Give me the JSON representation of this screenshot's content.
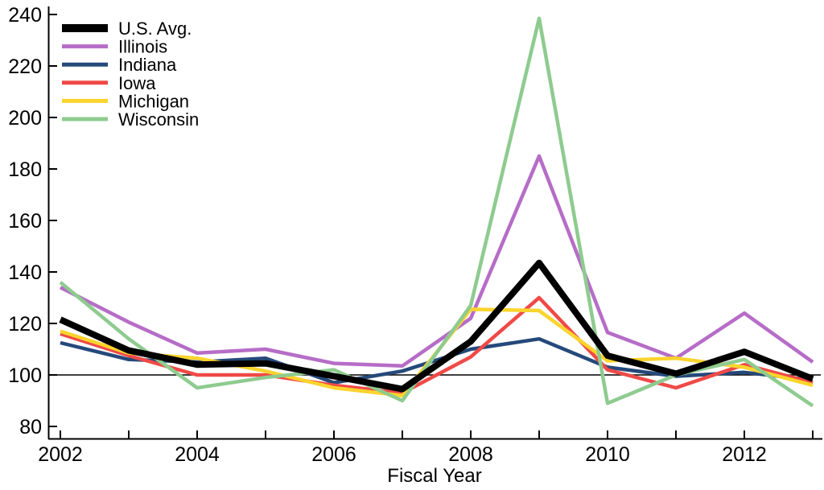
{
  "chart_data": {
    "type": "line",
    "title": "",
    "xlabel": "Fiscal Year",
    "ylabel": "",
    "x": [
      2002,
      2003,
      2004,
      2005,
      2006,
      2007,
      2008,
      2009,
      2010,
      2011,
      2012,
      2013
    ],
    "x_label_years": [
      2002,
      2004,
      2006,
      2008,
      2010,
      2012
    ],
    "y_ticks": [
      80,
      100,
      120,
      140,
      160,
      180,
      200,
      220,
      240
    ],
    "ylim": [
      80,
      240
    ],
    "xlim": [
      2002,
      2013
    ],
    "grid": "off",
    "reference_line_y": 100,
    "legend_position": "top-left",
    "axis_color": "#000000",
    "background_color": "#ffffff",
    "series": [
      {
        "name": "U.S. Avg.",
        "color": "#000000",
        "width": 8,
        "values": [
          121.5,
          109.5,
          104,
          104.5,
          99.5,
          94.5,
          113,
          143.5,
          107.5,
          100.5,
          109,
          98.5
        ]
      },
      {
        "name": "Illinois",
        "color": "#b66dc7",
        "width": 4.5,
        "values": [
          134,
          120.5,
          108.5,
          110,
          104.5,
          103.5,
          122,
          185,
          116.5,
          106.5,
          124,
          105
        ]
      },
      {
        "name": "Indiana",
        "color": "#25497a",
        "width": 4.5,
        "values": [
          112.5,
          106,
          105,
          106.5,
          97,
          101.5,
          110,
          114,
          103,
          99.5,
          101,
          98
        ]
      },
      {
        "name": "Iowa",
        "color": "#ef4a47",
        "width": 4.5,
        "values": [
          116,
          107.5,
          100,
          100,
          96,
          93,
          107,
          130,
          102,
          95,
          104,
          97
        ]
      },
      {
        "name": "Michigan",
        "color": "#fbd42d",
        "width": 4.5,
        "values": [
          117,
          108.5,
          106.5,
          101.5,
          95,
          92,
          125.5,
          125,
          105.5,
          106.5,
          103,
          96
        ]
      },
      {
        "name": "Wisconsin",
        "color": "#8ecb8f",
        "width": 4.5,
        "values": [
          136,
          114,
          95,
          99,
          102,
          90,
          127,
          238.5,
          89,
          100,
          106,
          88
        ]
      }
    ]
  }
}
